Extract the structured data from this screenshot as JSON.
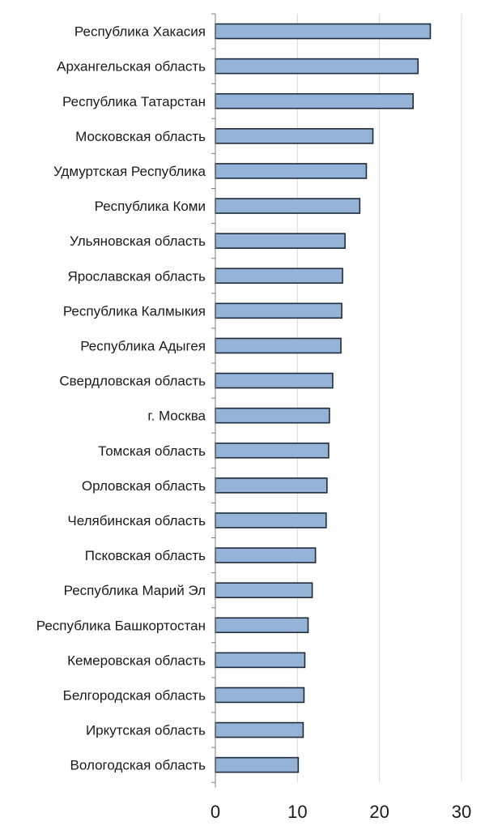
{
  "chart_data": {
    "type": "bar",
    "orientation": "horizontal",
    "title": "",
    "xlabel": "",
    "ylabel": "",
    "categories": [
      "Республика Хакасия",
      "Архангельская область",
      "Республика Татарстан",
      "Московская область",
      "Удмуртская Республика",
      "Республика Коми",
      "Ульяновская область",
      "Ярославская область",
      "Республика Калмыкия",
      "Республика Адыгея",
      "Свердловская область",
      "г. Москва",
      "Томская область",
      "Орловская область",
      "Челябинская область",
      "Псковская область",
      "Республика Марий Эл",
      "Республика Башкортостан",
      "Кемеровская область",
      "Белгородская область",
      "Иркутская область",
      "Вологодская область"
    ],
    "values": [
      26.2,
      24.7,
      24.1,
      19.2,
      18.4,
      17.6,
      15.8,
      15.5,
      15.4,
      15.3,
      14.3,
      13.9,
      13.8,
      13.6,
      13.5,
      12.2,
      11.8,
      11.3,
      10.9,
      10.8,
      10.7,
      10.1
    ],
    "xlim": [
      0,
      30
    ],
    "xticks": [
      "0",
      "10",
      "20",
      "30"
    ],
    "grid": true,
    "legend": "none",
    "colors": {
      "bar_fill": "#95b3d7",
      "bar_stroke": "#1f2b3a",
      "grid": "#d9d9d9",
      "axis": "#7f7f7f"
    }
  }
}
